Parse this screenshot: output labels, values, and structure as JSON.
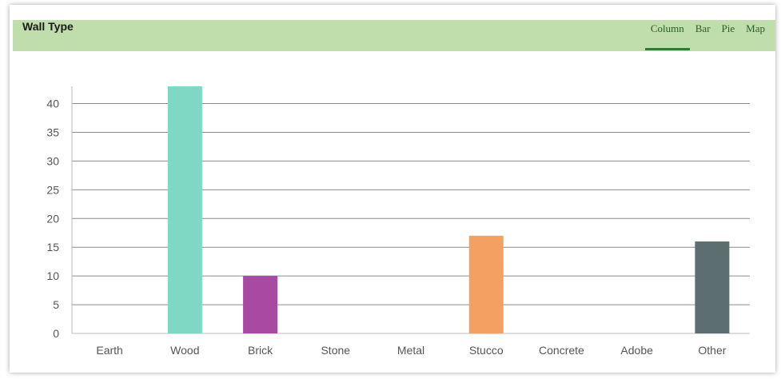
{
  "header": {
    "title": "Wall Type",
    "tabs": [
      {
        "label": "Column",
        "active": true
      },
      {
        "label": "Bar",
        "active": false
      },
      {
        "label": "Pie",
        "active": false
      },
      {
        "label": "Map",
        "active": false
      }
    ],
    "background_color": "#bfdeab",
    "active_tab_color": "#2e7d32"
  },
  "chart_data": {
    "type": "bar",
    "title": "Wall Type",
    "xlabel": "",
    "ylabel": "",
    "categories": [
      "Earth",
      "Wood",
      "Brick",
      "Stone",
      "Metal",
      "Stucco",
      "Concrete",
      "Adobe",
      "Other"
    ],
    "values": [
      0,
      43,
      10,
      0,
      0,
      17,
      0,
      0,
      16
    ],
    "colors": [
      "#7fd8c4",
      "#7fd8c4",
      "#a84aa2",
      "#999999",
      "#999999",
      "#f4a063",
      "#999999",
      "#999999",
      "#5c6e6f"
    ],
    "ylim": [
      0,
      43
    ],
    "yticks": [
      0,
      5,
      10,
      15,
      20,
      25,
      30,
      35,
      40
    ],
    "grid": true,
    "legend": "none"
  }
}
